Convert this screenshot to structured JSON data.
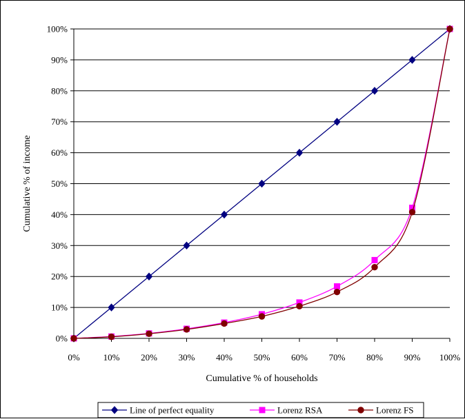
{
  "chart_data": {
    "type": "line",
    "title": "",
    "xlabel": "Cumulative % of households",
    "ylabel": "Cumulative % of income",
    "xlim": [
      0,
      100
    ],
    "ylim": [
      0,
      100
    ],
    "x_ticks": [
      "0%",
      "10%",
      "20%",
      "30%",
      "40%",
      "50%",
      "60%",
      "70%",
      "80%",
      "90%",
      "100%"
    ],
    "y_ticks": [
      "0%",
      "10%",
      "20%",
      "30%",
      "40%",
      "50%",
      "60%",
      "70%",
      "80%",
      "90%",
      "100%"
    ],
    "grid": "horizontal",
    "legend_position": "bottom",
    "x": [
      0,
      10,
      20,
      30,
      40,
      50,
      60,
      70,
      80,
      90,
      100
    ],
    "series": [
      {
        "name": "Line of perfect equality",
        "color": "#000080",
        "marker": "diamond",
        "values": [
          0,
          10,
          20,
          30,
          40,
          50,
          60,
          70,
          80,
          90,
          100
        ]
      },
      {
        "name": "Lorenz RSA",
        "color": "#ff00ff",
        "marker": "square",
        "values": [
          0,
          0.6,
          1.6,
          3.1,
          5.1,
          7.8,
          11.6,
          16.8,
          25.3,
          42.2,
          100
        ]
      },
      {
        "name": "Lorenz FS",
        "color": "#800000",
        "marker": "circle",
        "values": [
          0,
          0.5,
          1.5,
          2.9,
          4.8,
          7.1,
          10.4,
          15.0,
          23.0,
          40.8,
          100
        ]
      }
    ]
  }
}
